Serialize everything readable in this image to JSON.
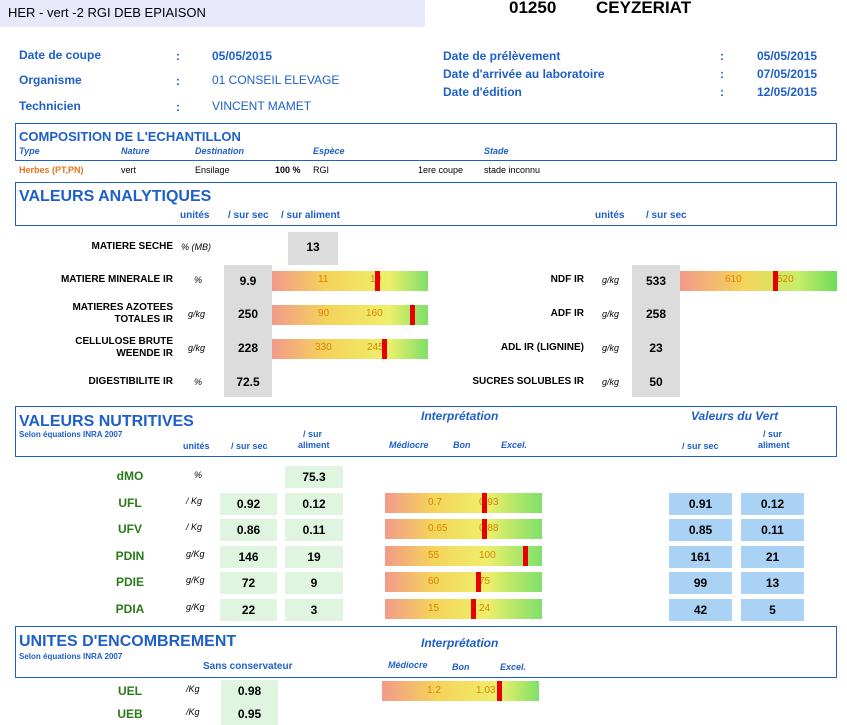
{
  "header": {
    "name": "HER - vert -2 RGI DEB EPIAISON",
    "code": "01250",
    "city": "CEYZERIAT"
  },
  "info": {
    "left": [
      {
        "label": "Date de coupe",
        "value": "05/05/2015"
      },
      {
        "label": "Organisme",
        "value": "01 CONSEIL ELEVAGE"
      },
      {
        "label": "Technicien",
        "value": "VINCENT MAMET"
      }
    ],
    "right": [
      {
        "label": "Date de prélèvement",
        "value": "05/05/2015"
      },
      {
        "label": "Date d'arrivée au laboratoire",
        "value": "07/05/2015"
      },
      {
        "label": "Date d'édition",
        "value": "12/05/2015"
      }
    ],
    "colon": ":"
  },
  "composition": {
    "title": "COMPOSITION DE L'ECHANTILLON",
    "headers": [
      "Type",
      "Nature",
      "Destination",
      "Espèce",
      "Stade"
    ],
    "row": {
      "type": "Herbes (PT,PN)",
      "nature": "vert",
      "destination": "Ensilage",
      "pct": "100 %",
      "espece": "RGI",
      "coupe": "1ere coupe",
      "stade": "stade inconnu"
    }
  },
  "analytiques": {
    "title": "VALEURS ANALYTIQUES",
    "h_unites": "unités",
    "h_sursec": "/ sur sec",
    "h_suraliment": "/ sur aliment",
    "h_unites_r": "unités",
    "h_sursec_r": "/ sur sec",
    "ms": {
      "label": "MATIERE SECHE",
      "unit": "% (MB)",
      "value": "13"
    },
    "left": [
      {
        "label": "MATIERE MINERALE IR",
        "unit": "%",
        "value": "9.9",
        "g1": "11",
        "g2": "10",
        "mk": 0.65
      },
      {
        "label1": "MATIERES AZOTEES",
        "label2": "TOTALES IR",
        "unit": "g/kg",
        "value": "250",
        "g1": "90",
        "g2": "160",
        "mk": 0.88
      },
      {
        "label1": "CELLULOSE BRUTE",
        "label2": "WEENDE IR",
        "unit": "g/kg",
        "value": "228",
        "g1": "330",
        "g2": "245",
        "mk": 0.7
      },
      {
        "label": "DIGESTIBILITE IR",
        "unit": "%",
        "value": "72.5"
      }
    ],
    "right": [
      {
        "label": "NDF IR",
        "unit": "g/kg",
        "value": "533",
        "g1": "610",
        "g2": "520",
        "mk": 0.6
      },
      {
        "label": "ADF IR",
        "unit": "g/kg",
        "value": "258"
      },
      {
        "label": "ADL IR (LIGNINE)",
        "unit": "g/kg",
        "value": "23"
      },
      {
        "label": "SUCRES SOLUBLES IR",
        "unit": "g/kg",
        "value": "50"
      }
    ]
  },
  "nutritives": {
    "title": "VALEURS NUTRITIVES",
    "subtitle": "Selon équations INRA 2007",
    "interp": "Interprétation",
    "vert": "Valeurs du Vert",
    "h_unites": "unités",
    "h_sursec": "/ sur sec",
    "h_sur": "/ sur",
    "h_aliment": "aliment",
    "h_mediocre": "Médiocre",
    "h_bon": "Bon",
    "h_excel": "Excel.",
    "h_v_sursec": "/ sur sec",
    "h_v_sur": "/ sur",
    "h_v_aliment": "aliment",
    "dmo": {
      "label": "dMO",
      "unit": "%",
      "value": "75.3"
    },
    "rows": [
      {
        "label": "UFL",
        "unit": "/ Kg",
        "sec": "0.92",
        "ali": "0.12",
        "g1": "0.7",
        "g2": "0.93",
        "mk": 0.62,
        "vsec": "0.91",
        "vali": "0.12"
      },
      {
        "label": "UFV",
        "unit": "/ Kg",
        "sec": "0.86",
        "ali": "0.11",
        "g1": "0.65",
        "g2": "0.88",
        "mk": 0.62,
        "vsec": "0.85",
        "vali": "0.11"
      },
      {
        "label": "PDIN",
        "unit": "g/Kg",
        "sec": "146",
        "ali": "19",
        "g1": "55",
        "g2": "100",
        "mk": 0.88,
        "vsec": "161",
        "vali": "21"
      },
      {
        "label": "PDIE",
        "unit": "g/Kg",
        "sec": "72",
        "ali": "9",
        "g1": "60",
        "g2": "75",
        "mk": 0.58,
        "vsec": "99",
        "vali": "13"
      },
      {
        "label": "PDIA",
        "unit": "g/Kg",
        "sec": "22",
        "ali": "3",
        "g1": "15",
        "g2": "24",
        "mk": 0.55,
        "vsec": "42",
        "vali": "5"
      }
    ]
  },
  "encombrement": {
    "title": "UNITES D'ENCOMBREMENT",
    "subtitle": "Selon équations INRA 2007",
    "interp": "Interprétation",
    "h_sans": "Sans conservateur",
    "h_mediocre": "Médiocre",
    "h_bon": "Bon",
    "h_excel": "Excel.",
    "rows": [
      {
        "label": "UEL",
        "unit": "/Kg",
        "value": "0.98",
        "g1": "1.2",
        "g2": "1.03",
        "mk": 0.75
      },
      {
        "label": "UEB",
        "unit": "/Kg",
        "value": "0.95"
      }
    ]
  }
}
